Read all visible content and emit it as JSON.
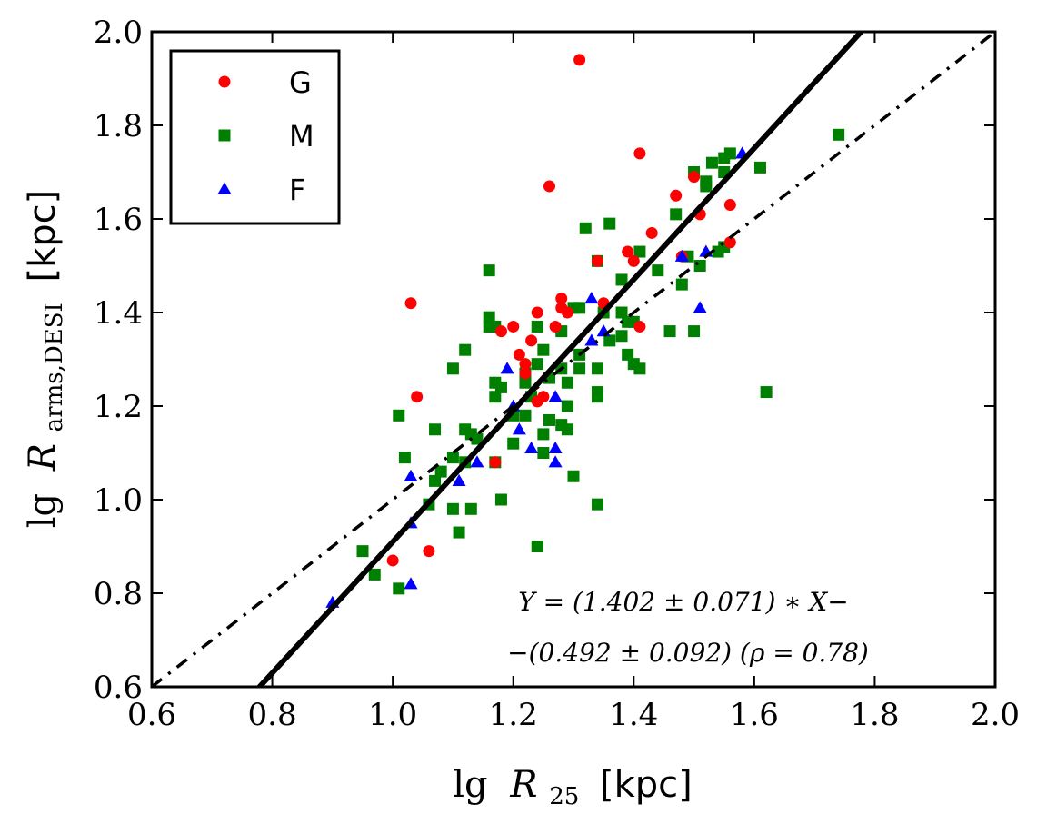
{
  "chart_data": {
    "type": "scatter",
    "xlabel_prefix": "lg",
    "xlabel_var": "R",
    "xlabel_sub": "25",
    "xlabel_unit": "[kpc]",
    "ylabel_prefix": "lg",
    "ylabel_var": "R",
    "ylabel_sub": "arms,DESI",
    "ylabel_unit": "[kpc]",
    "xlim": [
      0.6,
      2.0
    ],
    "ylim": [
      0.6,
      2.0
    ],
    "x_ticks": [
      "0.6",
      "0.8",
      "1.0",
      "1.2",
      "1.4",
      "1.6",
      "1.8",
      "2.0"
    ],
    "y_ticks": [
      "0.6",
      "0.8",
      "1.0",
      "1.2",
      "1.4",
      "1.6",
      "1.8",
      "2.0"
    ],
    "grid": false,
    "legend_position": "top-left",
    "series": [
      {
        "name": "G",
        "marker": "circle",
        "color": "#ff0000",
        "points": [
          [
            1.31,
            1.94
          ],
          [
            1.41,
            1.74
          ],
          [
            1.26,
            1.67
          ],
          [
            1.47,
            1.65
          ],
          [
            1.5,
            1.69
          ],
          [
            1.51,
            1.61
          ],
          [
            1.56,
            1.63
          ],
          [
            1.56,
            1.55
          ],
          [
            1.43,
            1.57
          ],
          [
            1.39,
            1.53
          ],
          [
            1.4,
            1.51
          ],
          [
            1.48,
            1.52
          ],
          [
            1.34,
            1.51
          ],
          [
            1.35,
            1.42
          ],
          [
            1.28,
            1.43
          ],
          [
            1.28,
            1.41
          ],
          [
            1.29,
            1.4
          ],
          [
            1.24,
            1.4
          ],
          [
            1.27,
            1.37
          ],
          [
            1.2,
            1.37
          ],
          [
            1.18,
            1.36
          ],
          [
            1.23,
            1.34
          ],
          [
            1.21,
            1.31
          ],
          [
            1.22,
            1.29
          ],
          [
            1.22,
            1.27
          ],
          [
            1.03,
            1.42
          ],
          [
            1.04,
            1.22
          ],
          [
            1.24,
            1.21
          ],
          [
            1.25,
            1.22
          ],
          [
            1.41,
            1.37
          ],
          [
            1.17,
            1.08
          ],
          [
            1.06,
            0.89
          ],
          [
            1.0,
            0.87
          ]
        ]
      },
      {
        "name": "M",
        "marker": "square",
        "color": "#008000",
        "points": [
          [
            1.74,
            1.78
          ],
          [
            1.61,
            1.71
          ],
          [
            1.56,
            1.74
          ],
          [
            1.53,
            1.72
          ],
          [
            1.55,
            1.73
          ],
          [
            1.5,
            1.7
          ],
          [
            1.52,
            1.68
          ],
          [
            1.52,
            1.67
          ],
          [
            1.55,
            1.7
          ],
          [
            1.47,
            1.61
          ],
          [
            1.36,
            1.59
          ],
          [
            1.32,
            1.58
          ],
          [
            1.49,
            1.52
          ],
          [
            1.51,
            1.5
          ],
          [
            1.54,
            1.53
          ],
          [
            1.55,
            1.54
          ],
          [
            1.41,
            1.53
          ],
          [
            1.34,
            1.51
          ],
          [
            1.44,
            1.49
          ],
          [
            1.48,
            1.46
          ],
          [
            1.38,
            1.47
          ],
          [
            1.16,
            1.49
          ],
          [
            1.3,
            1.41
          ],
          [
            1.31,
            1.41
          ],
          [
            1.35,
            1.4
          ],
          [
            1.38,
            1.4
          ],
          [
            1.39,
            1.38
          ],
          [
            1.4,
            1.38
          ],
          [
            1.36,
            1.34
          ],
          [
            1.16,
            1.39
          ],
          [
            1.16,
            1.37
          ],
          [
            1.17,
            1.37
          ],
          [
            1.24,
            1.37
          ],
          [
            1.25,
            1.32
          ],
          [
            1.28,
            1.36
          ],
          [
            1.31,
            1.31
          ],
          [
            1.39,
            1.31
          ],
          [
            1.4,
            1.29
          ],
          [
            1.41,
            1.28
          ],
          [
            1.46,
            1.36
          ],
          [
            1.5,
            1.36
          ],
          [
            1.12,
            1.32
          ],
          [
            1.1,
            1.28
          ],
          [
            1.24,
            1.29
          ],
          [
            1.26,
            1.26
          ],
          [
            1.28,
            1.28
          ],
          [
            1.31,
            1.28
          ],
          [
            1.34,
            1.28
          ],
          [
            1.17,
            1.25
          ],
          [
            1.18,
            1.24
          ],
          [
            1.17,
            1.22
          ],
          [
            1.22,
            1.25
          ],
          [
            1.23,
            1.22
          ],
          [
            1.29,
            1.25
          ],
          [
            1.34,
            1.22
          ],
          [
            1.34,
            1.23
          ],
          [
            1.22,
            1.27
          ],
          [
            1.01,
            1.18
          ],
          [
            1.07,
            1.15
          ],
          [
            1.12,
            1.15
          ],
          [
            1.13,
            1.14
          ],
          [
            1.2,
            1.18
          ],
          [
            1.22,
            1.18
          ],
          [
            1.26,
            1.17
          ],
          [
            1.28,
            1.16
          ],
          [
            1.29,
            1.15
          ],
          [
            1.25,
            1.14
          ],
          [
            1.29,
            1.2
          ],
          [
            1.02,
            1.09
          ],
          [
            1.08,
            1.06
          ],
          [
            1.1,
            1.09
          ],
          [
            1.14,
            1.13
          ],
          [
            1.17,
            1.08
          ],
          [
            1.2,
            1.12
          ],
          [
            1.25,
            1.1
          ],
          [
            1.07,
            1.04
          ],
          [
            1.12,
            1.08
          ],
          [
            1.3,
            1.05
          ],
          [
            1.06,
            0.99
          ],
          [
            1.1,
            0.98
          ],
          [
            1.13,
            0.98
          ],
          [
            1.18,
            1.0
          ],
          [
            1.34,
            0.99
          ],
          [
            1.11,
            0.93
          ],
          [
            0.95,
            0.89
          ],
          [
            0.97,
            0.84
          ],
          [
            1.01,
            0.81
          ],
          [
            1.24,
            0.9
          ],
          [
            1.62,
            1.23
          ],
          [
            1.38,
            1.35
          ]
        ]
      },
      {
        "name": "F",
        "marker": "triangle",
        "color": "#0000ff",
        "points": [
          [
            1.58,
            1.74
          ],
          [
            1.52,
            1.53
          ],
          [
            1.51,
            1.41
          ],
          [
            1.48,
            1.52
          ],
          [
            1.33,
            1.43
          ],
          [
            1.35,
            1.36
          ],
          [
            1.33,
            1.34
          ],
          [
            1.19,
            1.28
          ],
          [
            1.27,
            1.22
          ],
          [
            1.2,
            1.2
          ],
          [
            1.21,
            1.15
          ],
          [
            1.23,
            1.11
          ],
          [
            1.27,
            1.11
          ],
          [
            1.27,
            1.08
          ],
          [
            1.14,
            1.08
          ],
          [
            1.11,
            1.04
          ],
          [
            1.03,
            1.05
          ],
          [
            1.03,
            0.95
          ],
          [
            1.03,
            0.82
          ],
          [
            0.9,
            0.78
          ]
        ]
      }
    ],
    "lines": [
      {
        "style": "solid",
        "slope": 1.402,
        "intercept": -0.492
      },
      {
        "style": "dash-dot",
        "slope": 1.0,
        "intercept": 0.0
      }
    ],
    "annotation_line1": "Y = (1.402 ± 0.071) ∗ X−",
    "annotation_line2": "−(0.492 ± 0.092) (ρ = 0.78)"
  }
}
